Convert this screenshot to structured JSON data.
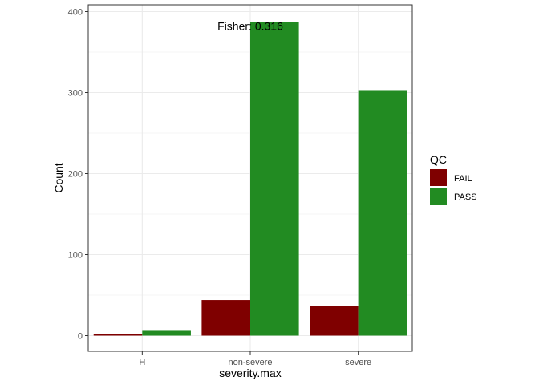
{
  "chart_data": {
    "type": "bar",
    "title": "",
    "xlabel": "severity.max",
    "ylabel": "Count",
    "categories": [
      "H",
      "non-severe",
      "severe"
    ],
    "series": [
      {
        "name": "FAIL",
        "values": [
          2,
          44,
          37
        ],
        "color": "#7F0000"
      },
      {
        "name": "PASS",
        "values": [
          6,
          387,
          303
        ],
        "color": "#228B22"
      }
    ],
    "ylim": [
      0,
      400
    ],
    "yticks": [
      0,
      100,
      200,
      300,
      400
    ],
    "grid": true,
    "legend": {
      "title": "QC",
      "placement": "right"
    },
    "annotation": {
      "text": "Fisher: 0.316",
      "category": "non-severe",
      "y": 385
    }
  }
}
